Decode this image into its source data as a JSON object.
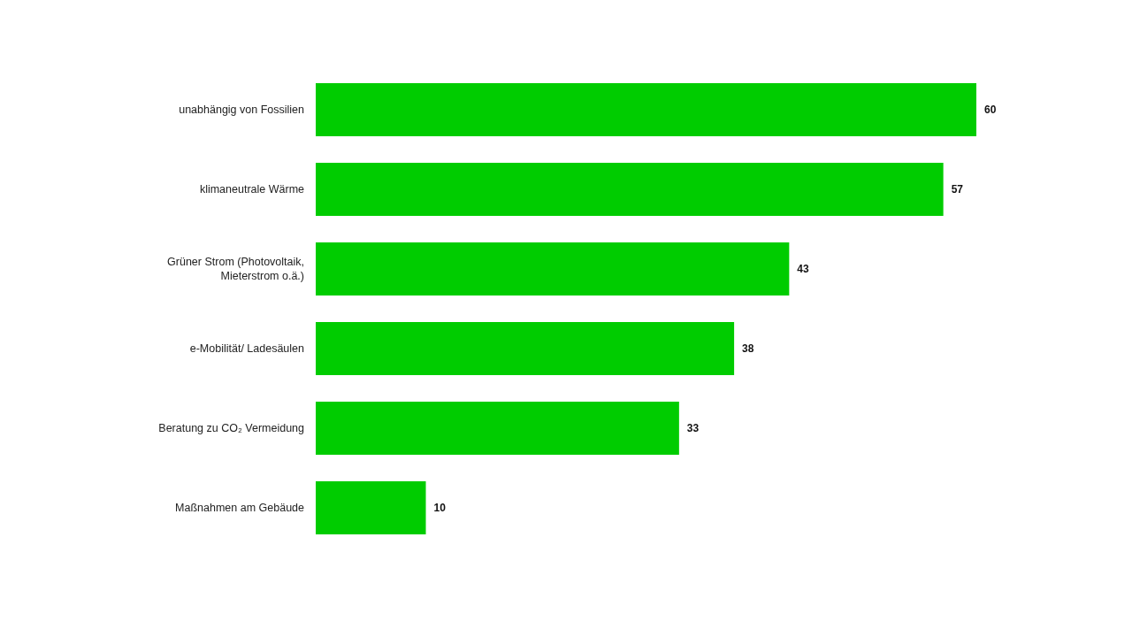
{
  "chart_data": {
    "type": "bar",
    "orientation": "horizontal",
    "categories": [
      "unabhängig von Fossilien",
      "klimaneutrale Wärme",
      "Grüner Strom (Photovoltaik, Mieterstrom o.ä.)",
      "e-Mobilität/ Ladesäulen",
      "Beratung zu CO₂ Vermeidung",
      "Maßnahmen am Gebäude"
    ],
    "values": [
      60,
      57,
      43,
      38,
      33,
      10
    ],
    "color": "#00cc00",
    "xlim": [
      0,
      60
    ],
    "data_labels": true,
    "tick_labels": "y"
  }
}
